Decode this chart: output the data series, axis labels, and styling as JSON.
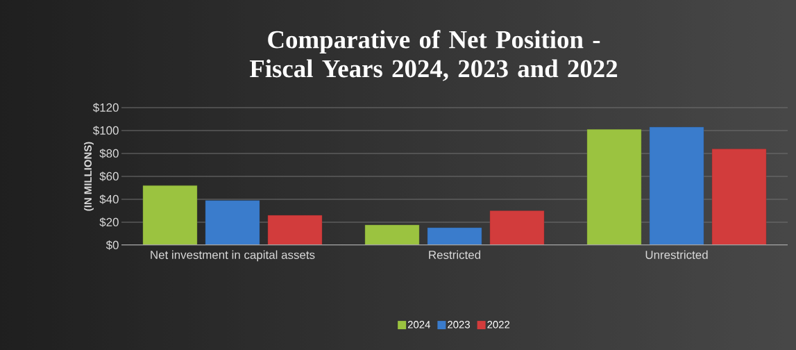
{
  "chart_data": {
    "type": "bar",
    "title": "Comparative of Net Position - Fiscal Years 2024, 2023 and 2022",
    "ylabel": "(IN MILLIONS)",
    "categories": [
      "Net investment in capital assets",
      "Restricted",
      "Unrestricted"
    ],
    "series": [
      {
        "name": "2024",
        "color": "#9bc340",
        "values": [
          52,
          17.6,
          101
        ]
      },
      {
        "name": "2023",
        "color": "#3a7ccc",
        "values": [
          39,
          15.2,
          103
        ]
      },
      {
        "name": "2022",
        "color": "#d23c3c",
        "values": [
          26,
          30,
          84
        ]
      }
    ],
    "ylim": [
      0,
      120
    ],
    "yticks": [
      {
        "value": 0,
        "label": "$0"
      },
      {
        "value": 20,
        "label": "$20"
      },
      {
        "value": 40,
        "label": "$40"
      },
      {
        "value": 60,
        "label": "$60"
      },
      {
        "value": 80,
        "label": "$80"
      },
      {
        "value": 100,
        "label": "$100"
      },
      {
        "value": 120,
        "label": "$120"
      }
    ],
    "grid": "y",
    "legend": "bottom"
  }
}
